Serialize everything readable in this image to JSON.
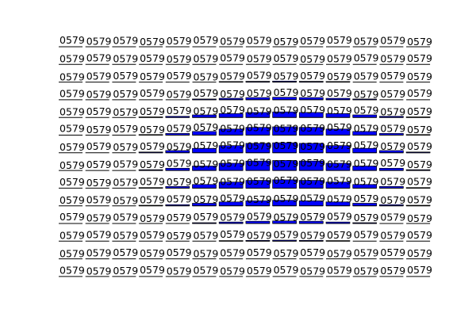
{
  "chart_data": {
    "type": "heatmap",
    "title": "",
    "xlabel": "",
    "ylabel": "",
    "grid": false,
    "axes_visible": false,
    "rows": 14,
    "cols": 14,
    "cell_label": "0579",
    "label_color": "#000000",
    "bar_color": "#0000ff",
    "edge_color": "#000000",
    "values": [
      [
        0.0,
        0.0,
        0.0,
        0.0,
        0.0,
        0.0,
        0.0,
        0.0,
        0.0,
        0.0,
        0.0,
        0.0,
        0.0,
        0.0
      ],
      [
        0.0,
        0.0,
        0.0,
        0.0,
        0.0,
        0.0,
        0.0,
        0.02,
        0.0,
        0.0,
        0.0,
        0.0,
        0.0,
        0.0
      ],
      [
        0.0,
        0.0,
        0.0,
        0.0,
        0.0,
        0.01,
        0.05,
        0.07,
        0.09,
        0.07,
        0.05,
        0.01,
        0.0,
        0.0
      ],
      [
        0.0,
        0.0,
        0.0,
        0.0,
        0.03,
        0.07,
        0.13,
        0.2,
        0.23,
        0.2,
        0.13,
        0.07,
        0.03,
        0.0
      ],
      [
        0.0,
        0.0,
        0.0,
        0.05,
        0.1,
        0.23,
        0.35,
        0.45,
        0.5,
        0.45,
        0.35,
        0.23,
        0.1,
        0.05
      ],
      [
        0.0,
        0.0,
        0.0,
        0.05,
        0.15,
        0.33,
        0.55,
        0.7,
        0.75,
        0.7,
        0.55,
        0.33,
        0.15,
        0.05
      ],
      [
        0.0,
        0.0,
        0.0,
        0.07,
        0.2,
        0.4,
        0.65,
        0.85,
        0.9,
        0.85,
        0.65,
        0.4,
        0.2,
        0.07
      ],
      [
        0.0,
        0.0,
        0.0,
        0.07,
        0.2,
        0.4,
        0.65,
        0.85,
        0.9,
        0.85,
        0.65,
        0.4,
        0.2,
        0.07
      ],
      [
        0.0,
        0.0,
        0.0,
        0.05,
        0.15,
        0.33,
        0.55,
        0.7,
        0.75,
        0.7,
        0.55,
        0.33,
        0.15,
        0.05
      ],
      [
        0.0,
        0.0,
        0.0,
        0.05,
        0.1,
        0.23,
        0.35,
        0.45,
        0.5,
        0.45,
        0.35,
        0.23,
        0.1,
        0.05
      ],
      [
        0.0,
        0.0,
        0.0,
        0.0,
        0.03,
        0.07,
        0.13,
        0.2,
        0.23,
        0.2,
        0.13,
        0.07,
        0.03,
        0.0
      ],
      [
        0.0,
        0.0,
        0.0,
        0.0,
        0.0,
        0.01,
        0.05,
        0.07,
        0.09,
        0.07,
        0.05,
        0.01,
        0.0,
        0.0
      ],
      [
        0.0,
        0.0,
        0.0,
        0.0,
        0.0,
        0.0,
        0.0,
        0.02,
        0.0,
        0.0,
        0.0,
        0.0,
        0.0,
        0.0
      ],
      [
        0.0,
        0.0,
        0.0,
        0.0,
        0.0,
        0.0,
        0.0,
        0.0,
        0.0,
        0.0,
        0.0,
        0.0,
        0.0,
        0.0
      ]
    ]
  }
}
